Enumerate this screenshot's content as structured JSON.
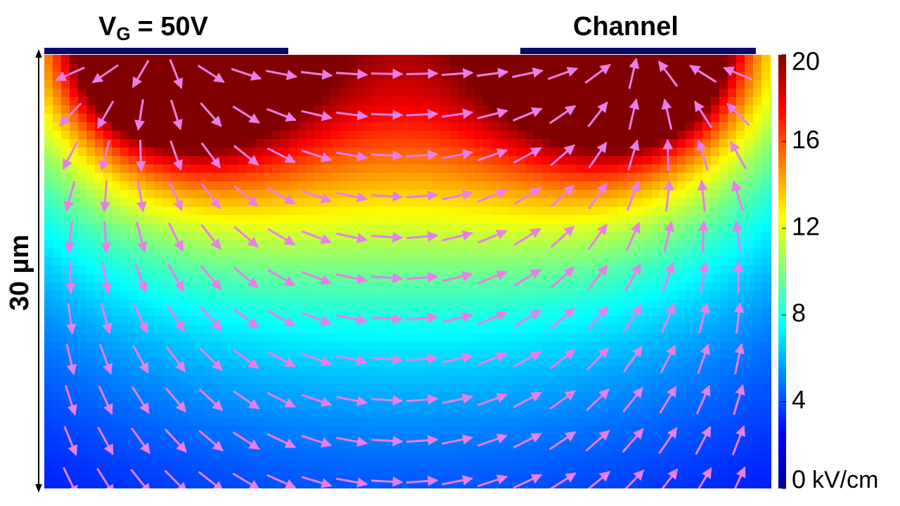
{
  "labels": {
    "gate_symbol": "V",
    "gate_subscript": "G",
    "gate_value": "= 50V",
    "channel": "Channel",
    "scale": "30 µm"
  },
  "colorbar": {
    "range": [
      0,
      20
    ],
    "ticks": [
      0,
      4,
      8,
      12,
      16,
      20
    ],
    "unit": "kV/cm"
  }
}
